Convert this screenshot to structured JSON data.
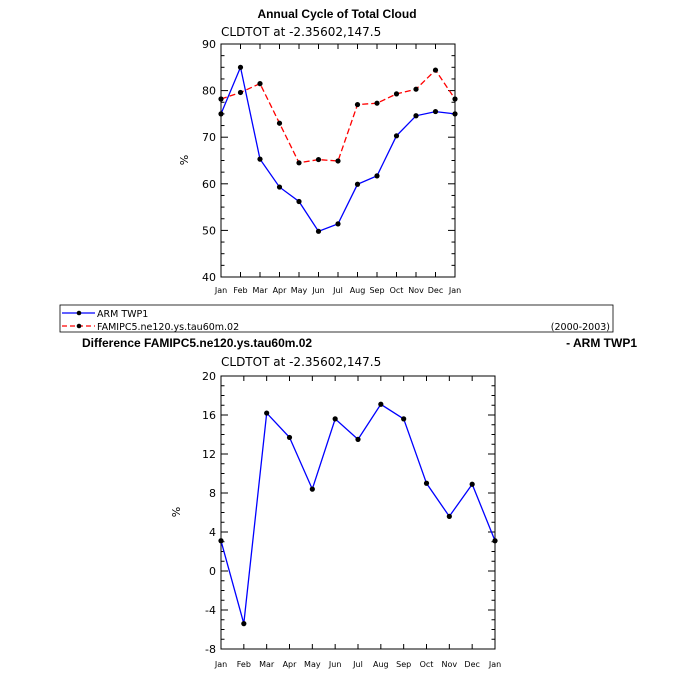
{
  "chart_data": [
    {
      "type": "line",
      "title": "Annual Cycle of Total Cloud",
      "subtitle": "CLDTOT at -2.35602,147.5",
      "ylabel": "%",
      "ylim": [
        40,
        90
      ],
      "yticks": [
        "40",
        "50",
        "60",
        "70",
        "80",
        "90"
      ],
      "categories": [
        "Jan",
        "Feb",
        "Mar",
        "Apr",
        "May",
        "Jun",
        "Jul",
        "Aug",
        "Sep",
        "Oct",
        "Nov",
        "Dec",
        "Jan"
      ],
      "grid": false,
      "legend_position": "below",
      "series": [
        {
          "name": "ARM TWP1",
          "color": "#0000ff",
          "dash": "solid",
          "values": [
            75.0,
            85.0,
            65.3,
            59.3,
            56.2,
            49.8,
            51.4,
            59.9,
            61.7,
            70.3,
            74.6,
            75.5,
            75.0
          ]
        },
        {
          "name": "FAMIPC5.ne120.ys.tau60m.02",
          "color": "#ff0000",
          "dash": "dashed",
          "values": [
            78.2,
            79.6,
            81.5,
            73.0,
            64.5,
            65.2,
            64.9,
            77.0,
            77.3,
            79.3,
            80.3,
            84.4,
            78.2
          ]
        }
      ]
    },
    {
      "type": "line",
      "title_left": "Difference FAMIPC5.ne120.ys.tau60m.02",
      "title_right": "- ARM TWP1",
      "subtitle": "CLDTOT at -2.35602,147.5",
      "ylabel": "%",
      "ylim": [
        -8,
        20
      ],
      "yticks": [
        "-8",
        "-4",
        "0",
        "4",
        "8",
        "12",
        "16",
        "20"
      ],
      "categories": [
        "Jan",
        "Feb",
        "Mar",
        "Apr",
        "May",
        "Jun",
        "Jul",
        "Aug",
        "Sep",
        "Oct",
        "Nov",
        "Dec",
        "Jan"
      ],
      "grid": false,
      "series": [
        {
          "name": "",
          "color": "#0000ff",
          "dash": "solid",
          "values": [
            3.1,
            -5.4,
            16.2,
            13.7,
            8.4,
            15.6,
            13.5,
            17.1,
            15.6,
            9.0,
            5.6,
            8.9,
            3.1
          ]
        }
      ]
    }
  ],
  "legend": {
    "entries": [
      "ARM TWP1",
      "FAMIPC5.ne120.ys.tau60m.02"
    ],
    "period": "(2000-2003)"
  }
}
